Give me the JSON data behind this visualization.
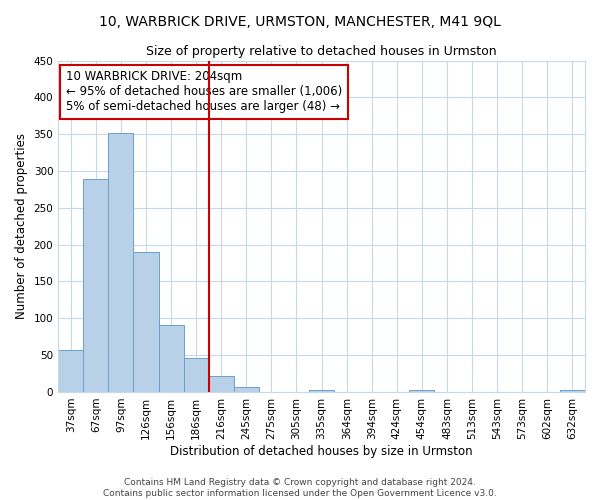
{
  "title": "10, WARBRICK DRIVE, URMSTON, MANCHESTER, M41 9QL",
  "subtitle": "Size of property relative to detached houses in Urmston",
  "xlabel": "Distribution of detached houses by size in Urmston",
  "ylabel": "Number of detached properties",
  "bar_labels": [
    "37sqm",
    "67sqm",
    "97sqm",
    "126sqm",
    "156sqm",
    "186sqm",
    "216sqm",
    "245sqm",
    "275sqm",
    "305sqm",
    "335sqm",
    "364sqm",
    "394sqm",
    "424sqm",
    "454sqm",
    "483sqm",
    "513sqm",
    "543sqm",
    "573sqm",
    "602sqm",
    "632sqm"
  ],
  "bar_values": [
    57,
    289,
    352,
    190,
    91,
    46,
    21,
    7,
    0,
    0,
    3,
    0,
    0,
    0,
    2,
    0,
    0,
    0,
    0,
    0,
    2
  ],
  "bar_color": "#b8d0e8",
  "bar_edge_color": "#6aa0cc",
  "bar_width": 1.0,
  "vline_x": 6.0,
  "vline_color": "#cc0000",
  "annotation_title": "10 WARBRICK DRIVE: 204sqm",
  "annotation_line1": "← 95% of detached houses are smaller (1,006)",
  "annotation_line2": "5% of semi-detached houses are larger (48) →",
  "annotation_box_color": "#ffffff",
  "annotation_box_edge": "#cc0000",
  "ylim": [
    0,
    450
  ],
  "yticks": [
    0,
    50,
    100,
    150,
    200,
    250,
    300,
    350,
    400,
    450
  ],
  "footer1": "Contains HM Land Registry data © Crown copyright and database right 2024.",
  "footer2": "Contains public sector information licensed under the Open Government Licence v3.0.",
  "bg_color": "#ffffff",
  "grid_color": "#c8d8e8",
  "title_fontsize": 10,
  "subtitle_fontsize": 9,
  "axis_label_fontsize": 8.5,
  "tick_fontsize": 7.5,
  "annotation_fontsize": 8.5,
  "footer_fontsize": 6.5
}
